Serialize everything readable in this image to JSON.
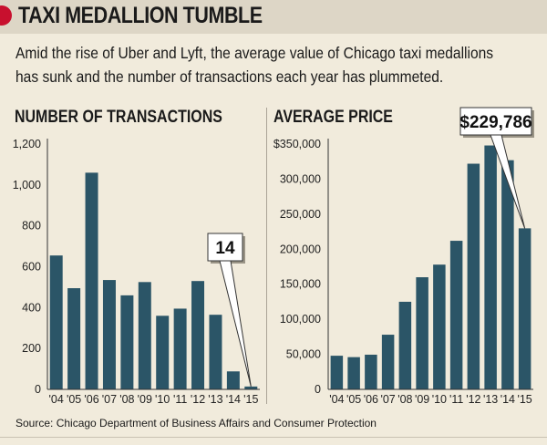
{
  "title": "TAXI MEDALLION TUMBLE",
  "subtitle": "Amid the rise of Uber and Lyft, the average value of Chicago taxi medallions has sunk and the number of transactions each year has plummeted.",
  "source": "Source: Chicago Department of Business Affairs and Consumer Protection",
  "colors": {
    "bar": "#2b5567",
    "accent": "#c8102e",
    "background": "#f1ebdc",
    "header": "#ddd6c6"
  },
  "chart_data": [
    {
      "type": "bar",
      "title": "NUMBER OF TRANSACTIONS",
      "categories": [
        "'04",
        "'05",
        "'06",
        "'07",
        "'08",
        "'09",
        "'10",
        "'11",
        "'12",
        "'13",
        "'14",
        "'15"
      ],
      "values": [
        655,
        495,
        1060,
        535,
        460,
        525,
        360,
        395,
        530,
        365,
        88,
        14
      ],
      "ylim": [
        0,
        1200
      ],
      "yticks": [
        0,
        200,
        400,
        600,
        800,
        1000,
        1200
      ],
      "ytick_labels": [
        "0",
        "200",
        "400",
        "600",
        "800",
        "1,000",
        "1,200"
      ],
      "callout": {
        "category": "'15",
        "label": "14"
      }
    },
    {
      "type": "bar",
      "title": "AVERAGE PRICE",
      "categories": [
        "'04",
        "'05",
        "'06",
        "'07",
        "'08",
        "'09",
        "'10",
        "'11",
        "'12",
        "'13",
        "'14",
        "'15"
      ],
      "values": [
        48000,
        46000,
        49500,
        78000,
        125000,
        160000,
        178000,
        212000,
        322000,
        348000,
        327000,
        229786
      ],
      "ylim": [
        0,
        350000
      ],
      "yticks": [
        0,
        50000,
        100000,
        150000,
        200000,
        250000,
        300000,
        350000
      ],
      "ytick_labels": [
        "0",
        "50,000",
        "100,000",
        "150,000",
        "200,000",
        "250,000",
        "300,000",
        "$350,000"
      ],
      "callout": {
        "category": "'15",
        "label": "$229,786"
      }
    }
  ]
}
